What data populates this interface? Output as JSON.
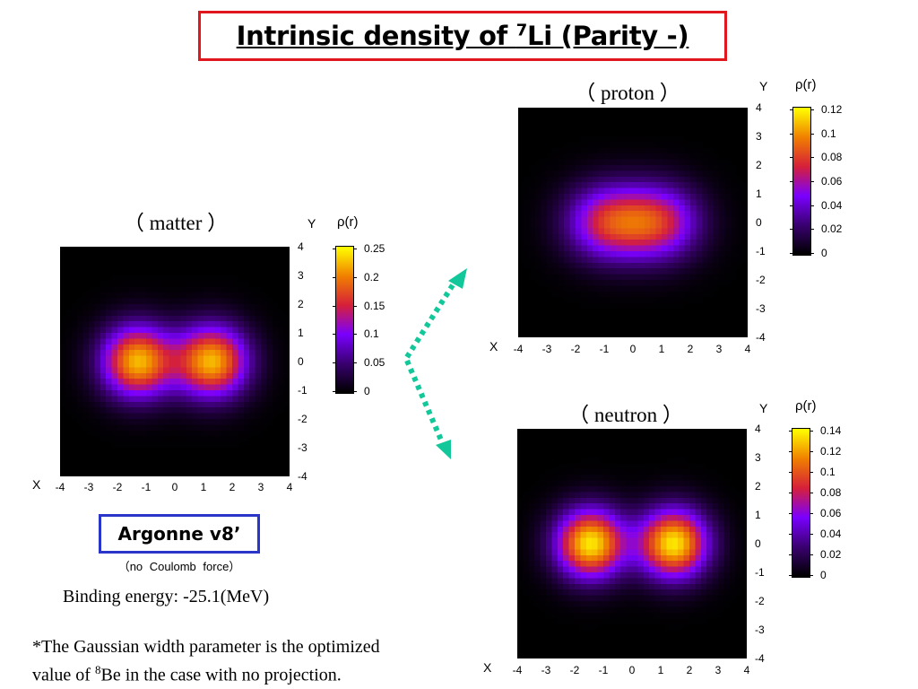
{
  "title": {
    "before": "Intrinsic density of ",
    "sup": "7",
    "after": "Li (Parity -)"
  },
  "model": {
    "label": "Argonne v8’",
    "note": "（no  Coulomb  force）"
  },
  "binding_energy": "Binding energy: -25.1(MeV)",
  "footnote": {
    "line1": "*The Gaussian width parameter is the optimized",
    "line2_before": "value of ",
    "line2_sup": "8",
    "line2_after": "Be in the case with no projection."
  },
  "colors": {
    "title_border": "#e0171c",
    "model_border": "#2b35c8",
    "arrows": "#12c89a"
  },
  "arrows": {
    "style": "dotted",
    "color_name": "teal-green",
    "from": "matter",
    "to": [
      "proton",
      "neutron"
    ]
  },
  "chart_data": [
    {
      "type": "heatmap",
      "id": "matter",
      "title": "（ matter ）",
      "xlabel": "X",
      "ylabel": "Y",
      "xlim": [
        -4,
        4
      ],
      "ylim": [
        -4,
        4
      ],
      "x_ticks": [
        "-4",
        "-3",
        "-2",
        "-1",
        "0",
        "1",
        "2",
        "3",
        "4"
      ],
      "y_ticks": [
        "4",
        "3",
        "2",
        "1",
        "0",
        "-1",
        "-2",
        "-3",
        "-4"
      ],
      "colorbar_label": "ρ(r)",
      "colorbar_ticks": [
        "0.25",
        "0.2",
        "0.15",
        "0.1",
        "0.05",
        "0"
      ],
      "vmin": 0,
      "vmax": 0.25,
      "colormap": [
        "#000000",
        "#3a0070",
        "#7a00ff",
        "#d6203a",
        "#f08000",
        "#ffff00"
      ],
      "lobes": [
        {
          "x": -1.3,
          "y": 0,
          "peak": 0.22,
          "width_x": 1.25,
          "width_y": 1.25
        },
        {
          "x": 1.3,
          "y": 0,
          "peak": 0.22,
          "width_x": 1.25,
          "width_y": 1.25
        }
      ]
    },
    {
      "type": "heatmap",
      "id": "proton",
      "title": "（ proton ）",
      "xlabel": "X",
      "ylabel": "Y",
      "xlim": [
        -4,
        4
      ],
      "ylim": [
        -4,
        4
      ],
      "x_ticks": [
        "-4",
        "-3",
        "-2",
        "-1",
        "0",
        "1",
        "2",
        "3",
        "4"
      ],
      "y_ticks": [
        "4",
        "3",
        "2",
        "1",
        "0",
        "-1",
        "-2",
        "-3",
        "-4"
      ],
      "colorbar_label": "ρ(r)",
      "colorbar_ticks": [
        "0.12",
        "0.1",
        "0.08",
        "0.06",
        "0.04",
        "0.02",
        "0"
      ],
      "vmin": 0,
      "vmax": 0.13,
      "colormap": [
        "#000000",
        "#3a0070",
        "#7a00ff",
        "#d6203a",
        "#f08000",
        "#ffff00"
      ],
      "lobes": [
        {
          "x": -0.9,
          "y": 0,
          "peak": 0.075,
          "width_x": 1.45,
          "width_y": 1.3
        },
        {
          "x": 0.9,
          "y": 0,
          "peak": 0.075,
          "width_x": 1.45,
          "width_y": 1.3
        }
      ]
    },
    {
      "type": "heatmap",
      "id": "neutron",
      "title": "（ neutron ）",
      "xlabel": "X",
      "ylabel": "Y",
      "xlim": [
        -4,
        4
      ],
      "ylim": [
        -4,
        4
      ],
      "x_ticks": [
        "-4",
        "-3",
        "-2",
        "-1",
        "0",
        "1",
        "2",
        "3",
        "4"
      ],
      "y_ticks": [
        "4",
        "3",
        "2",
        "1",
        "0",
        "-1",
        "-2",
        "-3",
        "-4"
      ],
      "colorbar_label": "ρ(r)",
      "colorbar_ticks": [
        "0.14",
        "0.12",
        "0.1",
        "0.08",
        "0.06",
        "0.04",
        "0.02",
        "0"
      ],
      "vmin": 0,
      "vmax": 0.14,
      "colormap": [
        "#000000",
        "#3a0070",
        "#7a00ff",
        "#d6203a",
        "#f08000",
        "#ffff00"
      ],
      "lobes": [
        {
          "x": -1.45,
          "y": 0,
          "peak": 0.135,
          "width_x": 1.2,
          "width_y": 1.2
        },
        {
          "x": 1.45,
          "y": 0,
          "peak": 0.135,
          "width_x": 1.2,
          "width_y": 1.2
        }
      ]
    }
  ]
}
